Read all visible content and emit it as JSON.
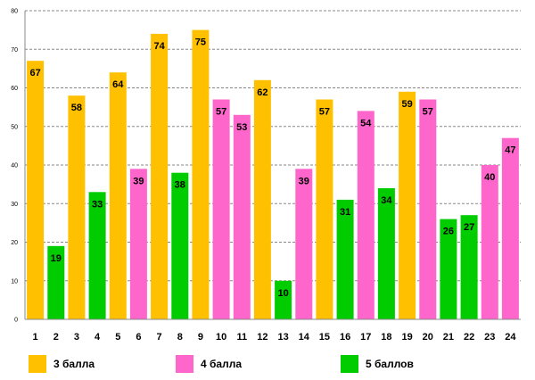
{
  "colors": {
    "3 балла": "#FFC000",
    "4 балла": "#FF66CC",
    "5 баллов": "#00CC00"
  },
  "chart_data": {
    "type": "bar",
    "title": "",
    "xlabel": "",
    "ylabel": "",
    "ylim": [
      0,
      80
    ],
    "yticks": [
      "0",
      "10",
      "20",
      "30",
      "40",
      "50",
      "60",
      "70",
      "80"
    ],
    "grid": true,
    "legend_position": "bottom",
    "categories": [
      "1",
      "2",
      "3",
      "4",
      "5",
      "6",
      "7",
      "8",
      "9",
      "10",
      "11",
      "12",
      "13",
      "14",
      "15",
      "16",
      "17",
      "18",
      "19",
      "20",
      "21",
      "22",
      "23",
      "24"
    ],
    "values": [
      67,
      19,
      58,
      33,
      64,
      39,
      74,
      38,
      75,
      57,
      53,
      62,
      10,
      39,
      57,
      31,
      54,
      34,
      59,
      57,
      26,
      27,
      40,
      47
    ],
    "groups": [
      "3 балла",
      "5 баллов",
      "3 балла",
      "5 баллов",
      "3 балла",
      "4 балла",
      "3 балла",
      "5 баллов",
      "3 балла",
      "4 балла",
      "4 балла",
      "3 балла",
      "5 баллов",
      "4 балла",
      "3 балла",
      "5 баллов",
      "4 балла",
      "5 баллов",
      "3 балла",
      "4 балла",
      "5 баллов",
      "5 баллов",
      "4 балла",
      "4 балла"
    ],
    "legend": [
      "3 балла",
      "4 балла",
      "5 баллов"
    ]
  }
}
